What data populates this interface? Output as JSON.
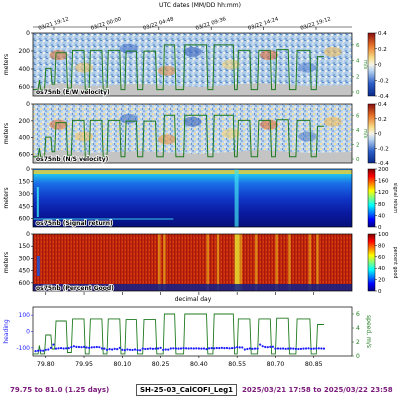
{
  "header": {
    "title": "UTC dates (MM/DD hh:mm)",
    "date_ticks": [
      "03/21 19:12",
      "03/22 00:00",
      "03/22 04:48",
      "03/22 09:36",
      "03/22 14:24",
      "03/22 19:12"
    ]
  },
  "footer": {
    "range": "79.75 to 81.0 (1.25 days)",
    "cruise": "SH-25-03_CalCOFI_Leg1",
    "dates": "2025/03/21 17:58 to 2025/03/22 23:58",
    "range_color": "#7a1a7a",
    "dates_color": "#7a1a7a"
  },
  "chart_data": [
    {
      "type": "heatmap",
      "label": "os75nb (E/W velocity)",
      "ylabel": "meters",
      "yticks": [
        0,
        200,
        400,
        600
      ],
      "ylim": [
        0,
        700
      ],
      "colormap": "red-white-blue",
      "colorbar": {
        "ticks": [
          0.4,
          0.2,
          0.0,
          -0.2,
          -0.4
        ],
        "range": [
          -0.4,
          0.4
        ]
      },
      "right_axis": {
        "label": "m/s",
        "ticks": [
          6,
          4,
          2,
          0
        ]
      }
    },
    {
      "type": "heatmap",
      "label": "os75nb (N/S velocity)",
      "ylabel": "meters",
      "yticks": [
        0,
        200,
        400,
        600
      ],
      "ylim": [
        0,
        700
      ],
      "colormap": "red-white-blue",
      "colorbar": {
        "ticks": [
          0.4,
          0.2,
          0.0,
          -0.2,
          -0.4
        ],
        "range": [
          -0.4,
          0.4
        ]
      },
      "right_axis": {
        "label": "m/s",
        "ticks": [
          6,
          4,
          2,
          0
        ]
      }
    },
    {
      "type": "heatmap",
      "label": "os75nb (Signal return)",
      "ylabel": "meters",
      "yticks": [
        0,
        150,
        300,
        450,
        600
      ],
      "ylim": [
        0,
        700
      ],
      "colormap": "jet",
      "colorbar": {
        "label": "signal return",
        "ticks": [
          200,
          160,
          120,
          80,
          40,
          0
        ],
        "range": [
          0,
          200
        ]
      }
    },
    {
      "type": "heatmap",
      "label": "os75nb (Percent Good)",
      "ylabel": "meters",
      "yticks": [
        0,
        150,
        300,
        450,
        600
      ],
      "ylim": [
        0,
        700
      ],
      "colormap": "jet",
      "colorbar": {
        "label": "percent good",
        "ticks": [
          100,
          80,
          60,
          40,
          20,
          0
        ],
        "range": [
          0,
          100
        ]
      }
    },
    {
      "type": "line",
      "ylabel": "heading",
      "right_ylabel": "speed, m/s",
      "xlabel": "decimal day",
      "xticks": [
        79.8,
        79.95,
        80.1,
        80.25,
        80.4,
        80.55,
        80.7,
        80.85
      ],
      "xlim": [
        79.75,
        81.0
      ],
      "yticks": [
        100,
        0,
        -100
      ],
      "ylim": [
        -150,
        150
      ],
      "right_yticks": [
        6,
        4,
        2,
        0
      ],
      "right_ylim": [
        0,
        7
      ],
      "series": [
        {
          "kind": "speed",
          "color": "#1f7a1f",
          "x": [
            79.75,
            79.77,
            79.775,
            79.78,
            79.795,
            79.8,
            79.82,
            79.825,
            79.835,
            79.84,
            79.88,
            79.885,
            79.9,
            79.905,
            79.95,
            79.955,
            79.97,
            79.975,
            80.02,
            80.025,
            80.04,
            80.045,
            80.09,
            80.095,
            80.11,
            80.115,
            80.155,
            80.16,
            80.18,
            80.185,
            80.23,
            80.235,
            80.26,
            80.265,
            80.305,
            80.31,
            80.34,
            80.345,
            80.43,
            80.435,
            80.455,
            80.46,
            80.535,
            80.54,
            80.55,
            80.555,
            80.6,
            80.605,
            80.63,
            80.635,
            80.68,
            80.685,
            80.7,
            80.705,
            80.75,
            80.755,
            80.78,
            80.785,
            80.835,
            80.84,
            80.86,
            80.865,
            80.89
          ],
          "y": [
            0.3,
            0.3,
            1.5,
            0.3,
            0.3,
            3.0,
            3.0,
            1.0,
            1.0,
            5.0,
            5.0,
            0.5,
            0.5,
            5.3,
            5.3,
            0.3,
            0.3,
            5.3,
            5.3,
            0.3,
            0.3,
            5.3,
            5.3,
            0.3,
            0.3,
            5.2,
            5.2,
            0.3,
            0.3,
            5.2,
            5.2,
            0.3,
            0.3,
            6.0,
            6.0,
            0.3,
            0.3,
            6.0,
            6.0,
            0.3,
            0.3,
            6.0,
            6.0,
            0.3,
            0.3,
            5.3,
            5.3,
            0.3,
            0.3,
            5.3,
            5.3,
            0.3,
            0.3,
            5.4,
            5.4,
            0.3,
            0.3,
            5.3,
            5.3,
            0.3,
            0.3,
            4.5,
            4.5
          ]
        },
        {
          "kind": "heading",
          "color": "#1a1aff",
          "x": [
            79.76,
            79.77,
            79.78,
            79.79,
            79.8,
            79.81,
            79.82,
            79.83,
            79.84,
            79.85,
            79.86,
            79.87,
            79.88,
            79.89,
            79.9,
            79.91,
            79.92,
            79.93,
            79.94,
            79.95,
            79.96,
            79.97,
            79.98,
            79.99,
            80.0,
            80.01,
            80.02,
            80.03,
            80.04,
            80.05,
            80.06,
            80.07,
            80.08,
            80.09,
            80.1,
            80.11,
            80.12,
            80.13,
            80.14,
            80.15,
            80.16,
            80.17,
            80.18,
            80.19,
            80.2,
            80.21,
            80.22,
            80.23,
            80.24,
            80.25,
            80.26,
            80.27,
            80.28,
            80.29,
            80.3,
            80.31,
            80.32,
            80.33,
            80.34,
            80.35,
            80.36,
            80.37,
            80.38,
            80.39,
            80.4,
            80.41,
            80.42,
            80.43,
            80.44,
            80.45,
            80.46,
            80.47,
            80.48,
            80.49,
            80.5,
            80.51,
            80.52,
            80.53,
            80.54,
            80.55,
            80.56,
            80.57,
            80.58,
            80.59,
            80.6,
            80.61,
            80.62,
            80.63,
            80.64,
            80.65,
            80.66,
            80.67,
            80.68,
            80.69,
            80.7,
            80.71,
            80.72,
            80.73,
            80.74,
            80.75,
            80.76,
            80.77,
            80.78,
            80.79,
            80.8,
            80.81,
            80.82,
            80.83,
            80.84,
            80.85,
            80.86,
            80.87,
            80.88,
            80.89
          ],
          "y": [
            -120,
            -118,
            -117,
            -118,
            -112,
            -110,
            -100,
            -80,
            -105,
            -103,
            -102,
            -104,
            -103,
            -102,
            -96,
            -90,
            -94,
            -95,
            -96,
            -94,
            -98,
            -100,
            -97,
            -96,
            -95,
            -96,
            -104,
            -105,
            -112,
            -108,
            -110,
            -106,
            -108,
            -100,
            -112,
            -114,
            -110,
            -112,
            -113,
            -110,
            -114,
            -115,
            -105,
            -107,
            -106,
            -104,
            -106,
            -105,
            -104,
            -100,
            -112,
            -110,
            -111,
            -104,
            -103,
            -104,
            -105,
            -104,
            -102,
            -103,
            -104,
            -103,
            -104,
            -103,
            -104,
            -105,
            -104,
            -108,
            -103,
            -102,
            -103,
            -101,
            -102,
            -100,
            -102,
            -101,
            -103,
            -102,
            -100,
            -96,
            -97,
            -98,
            -110,
            -107,
            -104,
            -106,
            -105,
            -105,
            -80,
            -90,
            -95,
            -96,
            -94,
            -93,
            -105,
            -104,
            -105,
            -104,
            -106,
            -105,
            -104,
            -105,
            -106,
            -107,
            -106,
            -105,
            -104,
            -103,
            -106,
            -105,
            -104,
            -103,
            -104,
            -105
          ]
        }
      ]
    }
  ]
}
